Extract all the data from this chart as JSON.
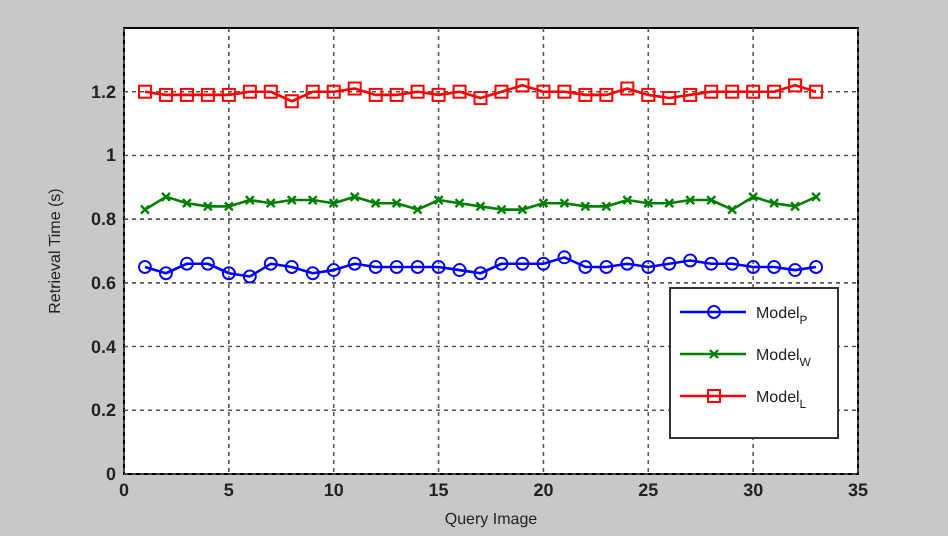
{
  "chart_data": {
    "type": "line",
    "xlabel": "Query Image",
    "ylabel": "Retrieval Time (s)",
    "x": [
      1,
      2,
      3,
      4,
      5,
      6,
      7,
      8,
      9,
      10,
      11,
      12,
      13,
      14,
      15,
      16,
      17,
      18,
      19,
      20,
      21,
      22,
      23,
      24,
      25,
      26,
      27,
      28,
      29,
      30,
      31,
      32,
      33
    ],
    "xlim": [
      0,
      35
    ],
    "xticks": [
      0,
      5,
      10,
      15,
      20,
      25,
      30,
      35
    ],
    "ylim": [
      0,
      1.4
    ],
    "yticks": [
      0,
      0.2,
      0.4,
      0.6,
      0.8,
      1,
      1.2
    ],
    "grid": true,
    "legend": "bottom right",
    "line_style": "solid",
    "series": [
      {
        "name": "Model$_{P}$",
        "color": "#0000ff",
        "marker": "circle",
        "values": [
          0.65,
          0.63,
          0.66,
          0.66,
          0.63,
          0.62,
          0.66,
          0.65,
          0.63,
          0.64,
          0.66,
          0.65,
          0.65,
          0.65,
          0.65,
          0.64,
          0.63,
          0.66,
          0.66,
          0.66,
          0.68,
          0.65,
          0.65,
          0.66,
          0.65,
          0.66,
          0.67,
          0.66,
          0.66,
          0.65,
          0.65,
          0.64,
          0.65
        ]
      },
      {
        "name": "Model$_{W}$",
        "color": "#008000",
        "marker": "cross",
        "values": [
          0.83,
          0.87,
          0.85,
          0.84,
          0.84,
          0.86,
          0.85,
          0.86,
          0.86,
          0.85,
          0.87,
          0.85,
          0.85,
          0.83,
          0.86,
          0.85,
          0.84,
          0.83,
          0.83,
          0.85,
          0.85,
          0.84,
          0.84,
          0.86,
          0.85,
          0.85,
          0.86,
          0.86,
          0.83,
          0.87,
          0.85,
          0.84,
          0.87
        ]
      },
      {
        "name": "Model$_{L}$",
        "color": "#ff0000",
        "marker": "square",
        "values": [
          1.2,
          1.19,
          1.19,
          1.19,
          1.19,
          1.2,
          1.2,
          1.17,
          1.2,
          1.2,
          1.21,
          1.19,
          1.19,
          1.2,
          1.19,
          1.2,
          1.18,
          1.2,
          1.22,
          1.2,
          1.2,
          1.19,
          1.19,
          1.21,
          1.19,
          1.18,
          1.19,
          1.2,
          1.2,
          1.2,
          1.2,
          1.22,
          1.2
        ]
      }
    ]
  }
}
